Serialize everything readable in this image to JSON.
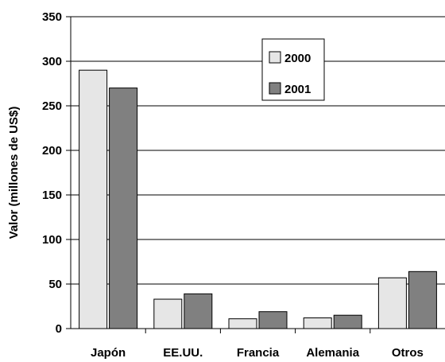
{
  "chart_data": {
    "type": "bar",
    "title": "",
    "xlabel": "",
    "ylabel": "Valor (millones de US$)",
    "categories": [
      "Japón",
      "EE.UU.",
      "Francia",
      "Alemania",
      "Otros"
    ],
    "series": [
      {
        "name": "2000",
        "values": [
          290,
          33,
          11,
          12,
          57
        ],
        "color": "#e6e6e6"
      },
      {
        "name": "2001",
        "values": [
          270,
          39,
          19,
          15,
          64
        ],
        "color": "#808080"
      }
    ],
    "ylim": [
      0,
      350
    ],
    "yticks": [
      0,
      50,
      100,
      150,
      200,
      250,
      300,
      350
    ],
    "grid": true,
    "legend": "top-center"
  }
}
